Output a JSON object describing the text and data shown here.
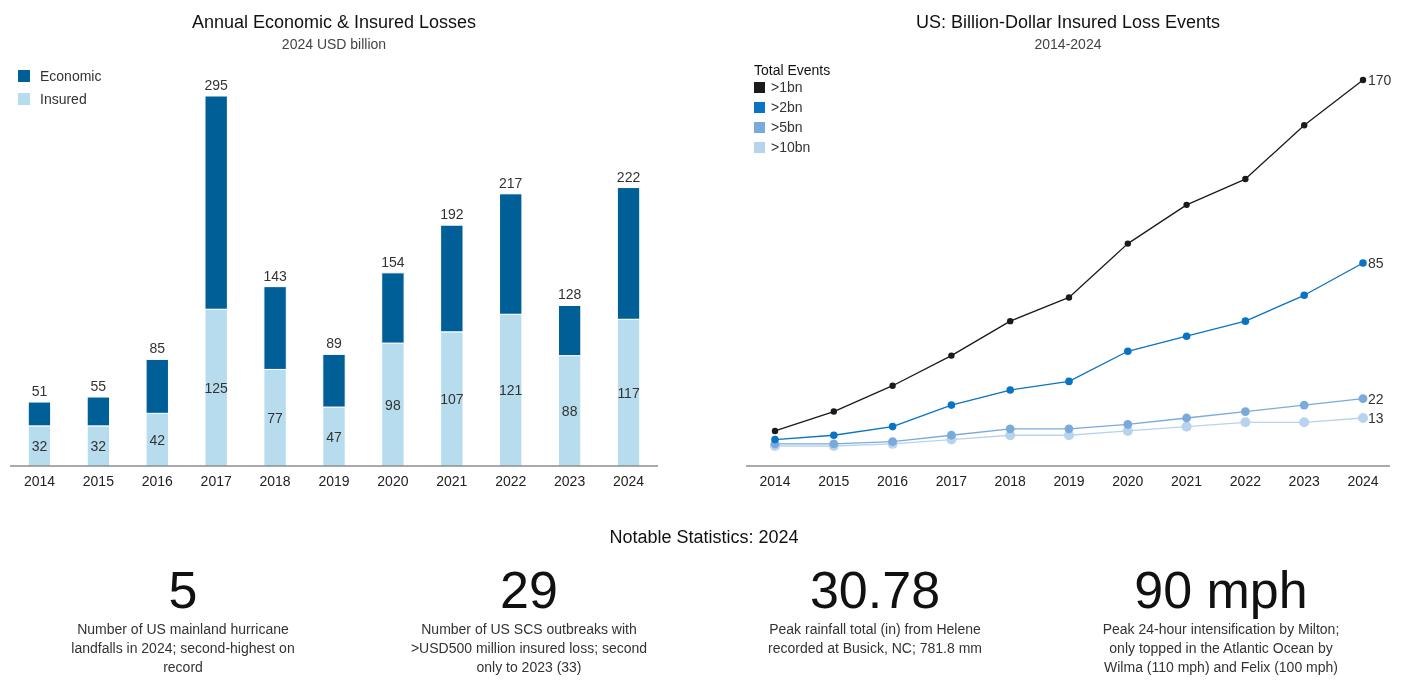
{
  "chart_data": [
    {
      "type": "bar",
      "title": "Annual Economic & Insured Losses",
      "subtitle": "2024 USD billion",
      "categories": [
        "2014",
        "2015",
        "2016",
        "2017",
        "2018",
        "2019",
        "2020",
        "2021",
        "2022",
        "2023",
        "2024"
      ],
      "stacked": true,
      "tick_labels": "x",
      "legend": "top left",
      "series": [
        {
          "name": "Insured",
          "color": "#b7dcee",
          "values": [
            32,
            32,
            42,
            125,
            77,
            47,
            98,
            107,
            121,
            88,
            117
          ],
          "value_labels": [
            "32",
            "32",
            "42",
            "125",
            "77",
            "47",
            "98",
            "107",
            "121",
            "88",
            "117"
          ]
        },
        {
          "name": "Economic",
          "color": "#005f96",
          "values": [
            19,
            23,
            43,
            170,
            66,
            42,
            56,
            85,
            96,
            40,
            105
          ]
        }
      ],
      "totals": [
        "51",
        "55",
        "85",
        "295",
        "143",
        "89",
        "154",
        "192",
        "217",
        "128",
        "222"
      ]
    },
    {
      "type": "line",
      "title": "US: Billion-Dollar Insured Loss Events",
      "subtitle": "2014-2024",
      "categories": [
        "2014",
        "2015",
        "2016",
        "2017",
        "2018",
        "2019",
        "2020",
        "2021",
        "2022",
        "2023",
        "2024"
      ],
      "tick_labels": "x",
      "legend": "top left",
      "legend_title": "Total Events",
      "marker": "circle",
      "series": [
        {
          "name": ">1bn",
          "color": "#1a1a1a",
          "values": [
            7,
            16,
            28,
            42,
            58,
            69,
            94,
            112,
            124,
            149,
            170
          ],
          "value_labels": [
            null,
            null,
            null,
            null,
            null,
            null,
            null,
            null,
            null,
            null,
            "170"
          ]
        },
        {
          "name": ">2bn",
          "color": "#0a73c2",
          "values": [
            3,
            5,
            9,
            19,
            26,
            30,
            44,
            51,
            58,
            70,
            85
          ],
          "value_labels": [
            null,
            null,
            null,
            null,
            null,
            null,
            null,
            null,
            null,
            null,
            "85"
          ]
        },
        {
          "name": ">5bn",
          "color": "#7aaadc",
          "values": [
            1,
            1,
            2,
            5,
            8,
            8,
            10,
            13,
            16,
            19,
            22
          ],
          "value_labels": [
            null,
            null,
            null,
            null,
            null,
            null,
            null,
            null,
            null,
            null,
            "22"
          ]
        },
        {
          "name": ">10bn",
          "color": "#b8d3ee",
          "values": [
            0,
            0,
            1,
            3,
            5,
            5,
            7,
            9,
            11,
            11,
            13
          ],
          "value_labels": [
            null,
            null,
            null,
            null,
            null,
            null,
            null,
            null,
            null,
            null,
            "13"
          ]
        }
      ]
    },
    {
      "type": "other",
      "title": "Notable Statistics: 2024",
      "annotations": [
        "5",
        "Number of US mainland hurricane landfalls in 2024; second-highest on record",
        "29",
        "Number of US SCS outbreaks with >USD500 million insured loss; second only to 2023 (33)",
        "30.78",
        "Peak rainfall total (in) from Helene recorded at Busick, NC; 781.8 mm",
        "90 mph",
        "Peak 24-hour intensification by Milton; only topped in the Atlantic Ocean by Wilma (110 mph) and Felix (100 mph)"
      ]
    }
  ]
}
